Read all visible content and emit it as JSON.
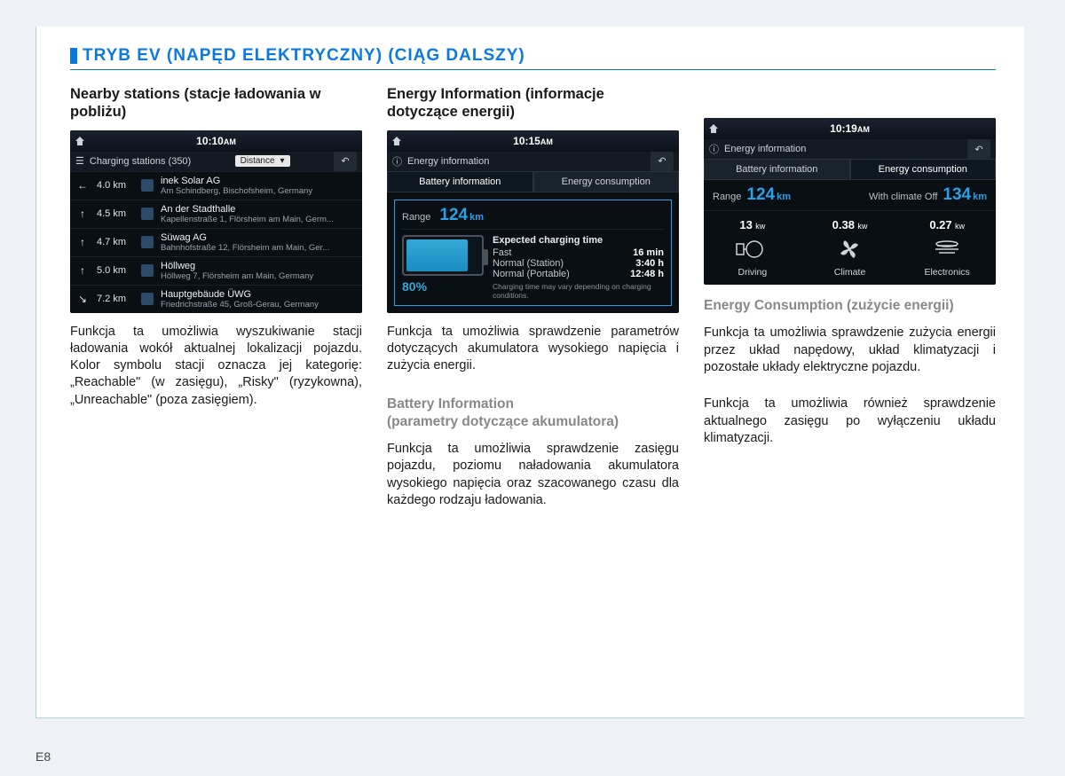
{
  "page_number": "E8",
  "title": "TRYB EV (NAPĘD ELEKTRYCZNY) (CIĄG DALSZY)",
  "colors": {
    "accent": "#0a7ae0",
    "screen_bg": "#0a0f14",
    "cyan": "#2aa0e8",
    "batt": "#35a8d8"
  },
  "col1": {
    "heading": "Nearby stations (stacje ładowania w pobliżu)",
    "para": "Funkcja ta umożliwia wyszukiwanie stacji ładowania wokół aktualnej lokalizacji pojazdu. Kolor symbolu stacji oznacza jej kategorię: „Reachable\" (w zasięgu), „Risky\" (ryzykowna), „Unreachable\" (poza zasięgiem).",
    "screen": {
      "time": "10:10",
      "ampm": "AM",
      "listHeader": "Charging stations (350)",
      "dropdown": "Distance",
      "stations": [
        {
          "arrow": "←",
          "dist": "4.0 km",
          "name": "inek Solar AG",
          "addr": "Am Schindberg, Bischofsheim, Germany"
        },
        {
          "arrow": "↑",
          "dist": "4.5 km",
          "name": "An der Stadthalle",
          "addr": "Kapellenstraße 1, Flörsheim am Main, Germ..."
        },
        {
          "arrow": "↑",
          "dist": "4.7 km",
          "name": "Süwag AG",
          "addr": "Bahnhofstraße 12, Flörsheim am Main, Ger..."
        },
        {
          "arrow": "↑",
          "dist": "5.0 km",
          "name": "Höllweg",
          "addr": "Höllweg 7, Flörsheim am Main, Germany"
        },
        {
          "arrow": "↘",
          "dist": "7.2 km",
          "name": "Hauptgebäude ÜWG",
          "addr": "Friedrichstraße 45, Groß-Gerau, Germany"
        }
      ]
    }
  },
  "col2": {
    "heading": "Energy Information (informacje dotyczące energii)",
    "para1": "Funkcja ta umożliwia sprawdzenie parametrów dotyczących akumulatora wysokiego napięcia i zużycia energii.",
    "sub": "Battery Information\n(parametry dotyczące akumulatora)",
    "para2": "Funkcja ta umożliwia sprawdzenie zasięgu pojazdu, poziomu naładowania akumulatora wysokiego napięcia oraz szacowanego czasu dla każdego rodzaju ładowania.",
    "screen": {
      "time": "10:15",
      "ampm": "AM",
      "headerLabel": "Energy information",
      "tab1": "Battery information",
      "tab2": "Energy consumption",
      "rangeLabel": "Range",
      "rangeVal": "124",
      "rangeUnit": "km",
      "battPct": "80%",
      "chargeTitle": "Expected charging time",
      "lines": [
        {
          "l": "Fast",
          "v": "16 min"
        },
        {
          "l": "Normal (Station)",
          "v": "3:40 h"
        },
        {
          "l": "Normal (Portable)",
          "v": "12:48 h"
        }
      ],
      "note": "Charging time may vary depending on charging conditions."
    }
  },
  "col3": {
    "sub": "Energy Consumption (zużycie energii)",
    "para1": "Funkcja ta umożliwia sprawdzenie zużycia energii przez układ napędowy, układ klimatyzacji i pozostałe układy elektryczne pojazdu.",
    "para2": "Funkcja ta umożliwia również sprawdzenie aktualnego zasięgu po wyłączeniu układu klimatyzacji.",
    "screen": {
      "time": "10:19",
      "ampm": "AM",
      "headerLabel": "Energy information",
      "tab1": "Battery information",
      "tab2": "Energy consumption",
      "rangeLabel": "Range",
      "r1": "124",
      "unit": "km",
      "withLabel": "With climate Off",
      "r2": "134",
      "cells": [
        {
          "v": "13",
          "u": "kw",
          "lab": "Driving",
          "svg": "motor"
        },
        {
          "v": "0.38",
          "u": "kw",
          "lab": "Climate",
          "svg": "fan"
        },
        {
          "v": "0.27",
          "u": "kw",
          "lab": "Electronics",
          "svg": "lamp"
        }
      ]
    }
  }
}
